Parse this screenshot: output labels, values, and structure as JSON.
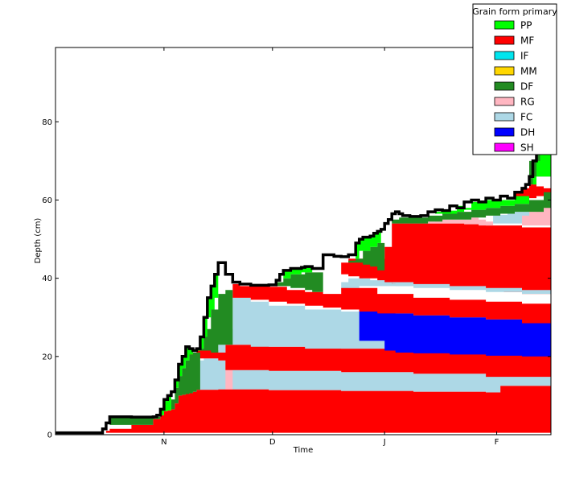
{
  "chart_data": {
    "type": "area",
    "xlabel": "Time",
    "ylabel": "Depth (cm)",
    "ylim": [
      0,
      99
    ],
    "y_ticks": [
      0,
      20,
      40,
      60,
      80
    ],
    "x_ticks": [
      {
        "label": "N",
        "x": 31
      },
      {
        "label": "D",
        "x": 61
      },
      {
        "label": "J",
        "x": 92
      },
      {
        "label": "F",
        "x": 123
      }
    ],
    "xlim": [
      1,
      138
    ],
    "legend": {
      "title": "Grain form primary",
      "placement": "top-right",
      "entries": [
        {
          "name": "PP",
          "color": "#00ff00"
        },
        {
          "name": "MF",
          "color": "#ff0000"
        },
        {
          "name": "IF",
          "color": "#00e5ee"
        },
        {
          "name": "MM",
          "color": "#ffd700"
        },
        {
          "name": "DF",
          "color": "#228b22"
        },
        {
          "name": "RG",
          "color": "#ffb6c1"
        },
        {
          "name": "FC",
          "color": "#add8e6"
        },
        {
          "name": "DH",
          "color": "#0000ff"
        },
        {
          "name": "SH",
          "color": "#ff00ff"
        }
      ]
    },
    "snow_surface": {
      "x": [
        1,
        13,
        14,
        15,
        16,
        22,
        28,
        29,
        30,
        31,
        32,
        33,
        34,
        35,
        36,
        37,
        38,
        39,
        40,
        41,
        42,
        43,
        44,
        45,
        46,
        48,
        50,
        52,
        55,
        58,
        60,
        62,
        63,
        64,
        66,
        69,
        70,
        72,
        75,
        78,
        80,
        82,
        84,
        85,
        86,
        88,
        89,
        90,
        91,
        92,
        93,
        94,
        95,
        96,
        97,
        99,
        102,
        104,
        106,
        108,
        110,
        112,
        114,
        116,
        118,
        120,
        122,
        124,
        126,
        128,
        130,
        131,
        132,
        133,
        134,
        135,
        136,
        138
      ],
      "y": [
        0.5,
        0.5,
        1.5,
        3,
        4.6,
        4.5,
        4.6,
        5,
        6.5,
        9,
        10,
        11,
        14,
        18,
        20,
        22.5,
        22,
        21.5,
        22,
        25,
        30,
        35,
        38,
        41,
        44,
        41,
        39,
        38.5,
        38.2,
        38.2,
        38.3,
        39.5,
        41,
        42,
        42.5,
        42.8,
        43,
        42.5,
        46,
        45.6,
        45.5,
        46,
        49,
        50,
        50.5,
        50.8,
        51.5,
        52,
        52.5,
        54,
        55,
        56.5,
        57,
        56.5,
        56,
        55.8,
        56,
        57,
        57.5,
        57.3,
        58.5,
        58,
        59.5,
        60,
        59.5,
        60.5,
        60,
        61,
        60.5,
        62,
        63,
        64,
        66,
        70,
        72,
        75,
        78,
        83
      ]
    },
    "layers": [
      {
        "type": "MF",
        "x": [
          13,
          14,
          15,
          16,
          22,
          28,
          29,
          30,
          31,
          32,
          33,
          34,
          35,
          36,
          37,
          38,
          39,
          40,
          42,
          46,
          60,
          80,
          100,
          120,
          124,
          138
        ],
        "top": [
          0.5,
          0.5,
          1,
          1.5,
          2.5,
          4,
          4,
          5,
          6,
          6.2,
          6.5,
          8,
          10,
          10.2,
          10.4,
          10.6,
          11,
          11.5,
          11.5,
          11.6,
          11.4,
          11.2,
          11.0,
          10.8,
          12.5,
          12.2
        ],
        "bottom": [
          0.5,
          0.5,
          0.5,
          0.5,
          0.5,
          0.5,
          0.5,
          0.5,
          0.5,
          0.5,
          0.5,
          0.5,
          0.5,
          0.5,
          0.5,
          0.5,
          0.5,
          0.5,
          0.5,
          0.5,
          0.5,
          0.5,
          0.5,
          0.5,
          0.5,
          0.5
        ]
      },
      {
        "type": "FC",
        "x": [
          39,
          40,
          42,
          46,
          48,
          50,
          60,
          80,
          100,
          120,
          124,
          138
        ],
        "top": [
          18,
          19,
          19.5,
          19,
          16.5,
          16.5,
          16.3,
          16,
          15.6,
          15,
          14.8,
          14.5
        ],
        "bottom": [
          11,
          11.5,
          11.5,
          11.6,
          11.6,
          11.6,
          11.4,
          11.2,
          11.0,
          10.8,
          12.5,
          12.2
        ]
      },
      {
        "type": "RG",
        "x": [
          48,
          49,
          50
        ],
        "top": [
          16.5,
          16.5,
          16.5
        ],
        "bottom": [
          11.6,
          11.6,
          11.6
        ]
      },
      {
        "type": "MF",
        "x": [
          38,
          40,
          46,
          48,
          50,
          60,
          80,
          100,
          120,
          138
        ],
        "top": [
          21,
          21.5,
          21,
          23,
          23,
          22.5,
          22,
          21.2,
          20.4,
          19.8
        ],
        "bottom": [
          20,
          19.5,
          19,
          16.5,
          16.5,
          16.3,
          16,
          15.6,
          14.8,
          14.5
        ]
      },
      {
        "type": "FC",
        "x": [
          46,
          48,
          50,
          55,
          60,
          70,
          80,
          86,
          88,
          138
        ],
        "top": [
          26,
          27,
          35,
          34,
          33,
          32,
          31.5,
          31.5,
          31.5,
          31
        ],
        "bottom": [
          21,
          23,
          23,
          22.5,
          22.5,
          22,
          22,
          22,
          22,
          21.5
        ]
      },
      {
        "type": "DH",
        "x": [
          85,
          86,
          90,
          92,
          95,
          100,
          110,
          120,
          130,
          138
        ],
        "top": [
          32,
          32.5,
          32,
          31.5,
          31,
          30.5,
          30,
          29.5,
          28.5,
          28
        ],
        "bottom": [
          24,
          24,
          24,
          21.5,
          21,
          20.8,
          20.5,
          20.2,
          20,
          19.8
        ]
      },
      {
        "type": "FC",
        "x": [
          80,
          82,
          85,
          86,
          88,
          138
        ],
        "top": [
          39,
          40,
          40.5,
          40,
          39.5,
          35
        ],
        "bottom": [
          37,
          37.5,
          38,
          38,
          38,
          34
        ]
      },
      {
        "type": "MF",
        "x": [
          50,
          52,
          55,
          60,
          65,
          70,
          75,
          80,
          85,
          90,
          100,
          110,
          120,
          130,
          138
        ],
        "top": [
          38.5,
          38,
          38,
          37.8,
          37,
          36.5,
          36,
          37.5,
          37.5,
          36,
          35,
          34.5,
          34,
          33.5,
          33
        ],
        "bottom": [
          35,
          35,
          34.5,
          34,
          33.5,
          33,
          32.5,
          32,
          31.5,
          31,
          30.5,
          30,
          29.5,
          28.5,
          28
        ]
      },
      {
        "type": "MF",
        "x": [
          80,
          82,
          85,
          90,
          92,
          94,
          95,
          100,
          110,
          120,
          125,
          130,
          138
        ],
        "top": [
          44,
          45,
          45,
          45,
          48,
          54,
          54,
          54,
          54,
          53.5,
          53.5,
          53,
          52.5
        ],
        "bottom": [
          41,
          40.5,
          40,
          39.5,
          39,
          38.5,
          38.5,
          38,
          37.5,
          37,
          36.5,
          36,
          35.5
        ]
      },
      {
        "type": "FC",
        "x": [
          94,
          95,
          100,
          110,
          120,
          130,
          138
        ],
        "top": [
          39,
          39,
          38.5,
          38,
          37.5,
          37,
          36.5
        ],
        "bottom": [
          38.5,
          38,
          37.5,
          37,
          36.5,
          36,
          35.5
        ]
      },
      {
        "type": "RG",
        "x": [
          104,
          106,
          110,
          114,
          116,
          118,
          120,
          122
        ],
        "top": [
          54.5,
          55,
          55,
          55,
          55.5,
          55,
          54.5,
          54
        ],
        "bottom": [
          54,
          54,
          54,
          53.8,
          53.8,
          53.5,
          53.5,
          53.5
        ]
      },
      {
        "type": "FC",
        "x": [
          122,
          124,
          126,
          128,
          130,
          132
        ],
        "top": [
          56,
          56.2,
          56.5,
          57,
          57,
          57
        ],
        "bottom": [
          54,
          54,
          54,
          54,
          54,
          54
        ]
      },
      {
        "type": "RG",
        "x": [
          130,
          132,
          134,
          136,
          138
        ],
        "top": [
          56,
          57,
          58,
          59,
          58.5
        ],
        "bottom": [
          53.5,
          53.5,
          53.5,
          53.5,
          53.5
        ]
      },
      {
        "type": "MF",
        "x": [
          128,
          130,
          132,
          134,
          136,
          138
        ],
        "top": [
          62,
          63,
          64,
          63.5,
          63,
          63
        ],
        "bottom": [
          60,
          60,
          60.5,
          61,
          61,
          61
        ]
      },
      {
        "type": "DF",
        "x": [
          16,
          18,
          22,
          28,
          29,
          30
        ],
        "top": [
          4.5,
          4.5,
          4.5,
          4.5,
          4.6,
          5
        ],
        "bottom": [
          2.5,
          2.5,
          2.5,
          4,
          4,
          5
        ]
      },
      {
        "type": "DF",
        "x": [
          33,
          34,
          35,
          36,
          37,
          38,
          39,
          40,
          41
        ],
        "top": [
          9,
          12,
          15,
          17,
          19,
          20.5,
          21,
          21,
          21.5
        ],
        "bottom": [
          6.5,
          8,
          10,
          10.2,
          10.4,
          10.6,
          11,
          11.5,
          11.5
        ]
      },
      {
        "type": "DF",
        "x": [
          40,
          42,
          44,
          46,
          48,
          50
        ],
        "top": [
          22,
          27,
          32,
          36,
          37,
          38
        ],
        "bottom": [
          21.5,
          21.5,
          21,
          23,
          23,
          23
        ]
      },
      {
        "type": "DF",
        "x": [
          62,
          64,
          66,
          70,
          72,
          75
        ],
        "top": [
          39,
          40,
          41,
          41.5,
          41.5,
          42
        ],
        "bottom": [
          38,
          38,
          37.5,
          37,
          36.5,
          36
        ]
      },
      {
        "type": "DF",
        "x": [
          82,
          84,
          86,
          88,
          90,
          92
        ],
        "top": [
          44.5,
          45,
          47,
          48,
          49,
          52
        ],
        "bottom": [
          44,
          44,
          43.5,
          43,
          42,
          40
        ]
      },
      {
        "type": "DF",
        "x": [
          94,
          96,
          100,
          104,
          108,
          112,
          116,
          120,
          124,
          128,
          132,
          136,
          138
        ],
        "top": [
          55,
          55.5,
          55.5,
          56,
          56.5,
          57,
          57.5,
          58,
          58.5,
          59,
          60,
          62,
          65
        ],
        "bottom": [
          54,
          54,
          54,
          54.5,
          55,
          55,
          55.5,
          56,
          56.5,
          57,
          57,
          58,
          60
        ]
      },
      {
        "type": "DF",
        "x": [
          132,
          134,
          136,
          138
        ],
        "top": [
          70,
          72,
          74,
          76
        ],
        "bottom": [
          64,
          66,
          66,
          66
        ]
      },
      {
        "type": "PP",
        "x": [
          30,
          31,
          32,
          33
        ],
        "top": [
          6.5,
          9,
          10,
          11
        ],
        "bottom": [
          5,
          6,
          6.2,
          6.5
        ]
      },
      {
        "type": "PP",
        "x": [
          34,
          35,
          36,
          37,
          38,
          39
        ],
        "top": [
          14,
          18,
          20,
          22.5,
          22,
          21.5
        ],
        "bottom": [
          12,
          15,
          17,
          19,
          20.5,
          21
        ]
      },
      {
        "type": "PP",
        "x": [
          40,
          41,
          42,
          43,
          44,
          45,
          46
        ],
        "top": [
          22,
          25,
          30,
          35,
          38,
          41,
          44
        ],
        "bottom": [
          21.5,
          22,
          25,
          30,
          32,
          35,
          38
        ]
      },
      {
        "type": "PP",
        "x": [
          64,
          66,
          69,
          70,
          72
        ],
        "top": [
          42,
          42.5,
          42.8,
          43,
          42.5
        ],
        "bottom": [
          40,
          41,
          41.5,
          41.5,
          41.5
        ]
      },
      {
        "type": "PP",
        "x": [
          84,
          85,
          86,
          88,
          89,
          90,
          91
        ],
        "top": [
          49,
          50,
          50.5,
          50.8,
          51.5,
          52,
          52.5
        ],
        "bottom": [
          45,
          47,
          47,
          48,
          48,
          49,
          50
        ]
      },
      {
        "type": "PP",
        "x": [
          106,
          108,
          110,
          112,
          114,
          116,
          120,
          124,
          128,
          132
        ],
        "top": [
          57,
          57.5,
          57.3,
          58.5,
          58,
          59.5,
          60,
          60,
          61,
          64
        ],
        "bottom": [
          56.5,
          56.5,
          56.5,
          57,
          57.5,
          57.5,
          58,
          58.5,
          59,
          60
        ]
      },
      {
        "type": "PP",
        "x": [
          132,
          133,
          134,
          135,
          136,
          138
        ],
        "top": [
          64,
          66,
          70,
          72,
          75,
          78
        ],
        "bottom": [
          64,
          64,
          66,
          66,
          66,
          66
        ]
      }
    ]
  }
}
